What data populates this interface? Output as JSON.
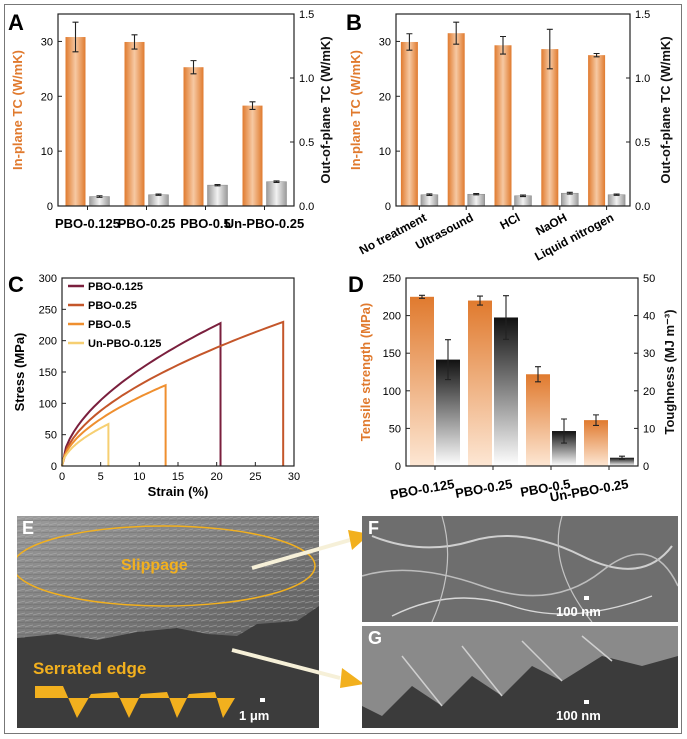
{
  "colors": {
    "orange": "#e07a2e",
    "orange_light": "#f6c9a3",
    "grey": "#9a9a9a",
    "grey_light": "#f2f2f2",
    "black": "#111111",
    "gold": "#f2b01e",
    "line1": "#7a1f3d",
    "line2": "#c4562a",
    "line3": "#ef8f2f",
    "line4": "#f6cf72"
  },
  "chart_data": [
    {
      "panel": "A",
      "type": "bar",
      "categories": [
        "PBO-0.125",
        "PBO-0.25",
        "PBO-0.5",
        "Un-PBO-0.25"
      ],
      "ylabel": "In-plane TC (W/mK)",
      "ylim": [
        0,
        35
      ],
      "yticks": [
        0,
        10,
        20,
        30
      ],
      "y2label": "Out-of-plane TC (W/mK)",
      "y2lim": [
        0,
        1.5
      ],
      "y2ticks": [
        "0.0",
        "0.5",
        "1.0",
        "1.5"
      ],
      "series": [
        {
          "name": "In-plane TC",
          "axis": "left",
          "values": [
            30.8,
            29.9,
            25.3,
            18.3
          ],
          "errors": [
            2.7,
            1.3,
            1.2,
            0.7
          ]
        },
        {
          "name": "Out-of-plane TC",
          "axis": "right",
          "values": [
            0.074,
            0.088,
            0.163,
            0.19
          ],
          "errors": [
            0.006,
            0.005,
            0.005,
            0.006
          ]
        }
      ]
    },
    {
      "panel": "B",
      "type": "bar",
      "categories": [
        "No treatment",
        "Ultrasound",
        "HCl",
        "NaOH",
        "Liquid nitrogen"
      ],
      "ylabel": "In-plane TC (W/mK)",
      "ylim": [
        0,
        35
      ],
      "yticks": [
        0,
        10,
        20,
        30
      ],
      "y2label": "Out-of-plane TC (W/mK)",
      "y2lim": [
        0,
        1.5
      ],
      "y2ticks": [
        "0.0",
        "0.5",
        "1.0",
        "1.5"
      ],
      "series": [
        {
          "name": "In-plane TC",
          "axis": "left",
          "values": [
            29.9,
            31.5,
            29.3,
            28.6,
            27.5
          ],
          "errors": [
            1.5,
            2.0,
            1.6,
            3.6,
            0.3
          ]
        },
        {
          "name": "Out-of-plane TC",
          "axis": "right",
          "values": [
            0.088,
            0.092,
            0.08,
            0.1,
            0.088
          ],
          "errors": [
            0.006,
            0.005,
            0.006,
            0.007,
            0.005
          ]
        }
      ]
    },
    {
      "panel": "C",
      "type": "line",
      "xlabel": "Strain (%)",
      "ylabel": "Stress (MPa)",
      "xlim": [
        0,
        30
      ],
      "ylim": [
        0,
        300
      ],
      "xticks": [
        0,
        5,
        10,
        15,
        20,
        25,
        30
      ],
      "yticks": [
        0,
        50,
        100,
        150,
        200,
        250,
        300
      ],
      "series": [
        {
          "name": "PBO-0.125",
          "fracture_strain": 20.5,
          "max_stress": 228
        },
        {
          "name": "PBO-0.25",
          "fracture_strain": 28.6,
          "max_stress": 230
        },
        {
          "name": "PBO-0.5",
          "fracture_strain": 13.4,
          "max_stress": 129
        },
        {
          "name": "Un-PBO-0.125",
          "fracture_strain": 6.0,
          "max_stress": 67
        }
      ]
    },
    {
      "panel": "D",
      "type": "bar",
      "categories": [
        "PBO-0.125",
        "PBO-0.25",
        "PBO-0.5",
        "Un-PBO-0.25"
      ],
      "ylabel": "Tensile strength (MPa)",
      "ylim": [
        0,
        250
      ],
      "yticks": [
        0,
        50,
        100,
        150,
        200,
        250
      ],
      "y2label": "Toughness (MJ m⁻³)",
      "y2lim": [
        0,
        50
      ],
      "y2ticks": [
        0,
        10,
        20,
        30,
        40,
        50
      ],
      "series": [
        {
          "name": "Tensile strength",
          "axis": "left",
          "values": [
            225,
            220,
            122,
            61
          ],
          "errors": [
            2,
            6,
            10,
            7
          ]
        },
        {
          "name": "Toughness",
          "axis": "right",
          "values": [
            28.3,
            39.5,
            9.3,
            2.2
          ],
          "errors": [
            5.3,
            5.8,
            3.2,
            0.4
          ]
        }
      ]
    }
  ],
  "panels": {
    "A": "A",
    "B": "B",
    "C": "C",
    "D": "D",
    "E": "E",
    "F": "F",
    "G": "G"
  },
  "sem": {
    "slippage": "Slippage",
    "serrated_edge": "Serrated edge",
    "scale_e": "1 μm",
    "scale_f": "100 nm",
    "scale_g": "100 nm"
  }
}
